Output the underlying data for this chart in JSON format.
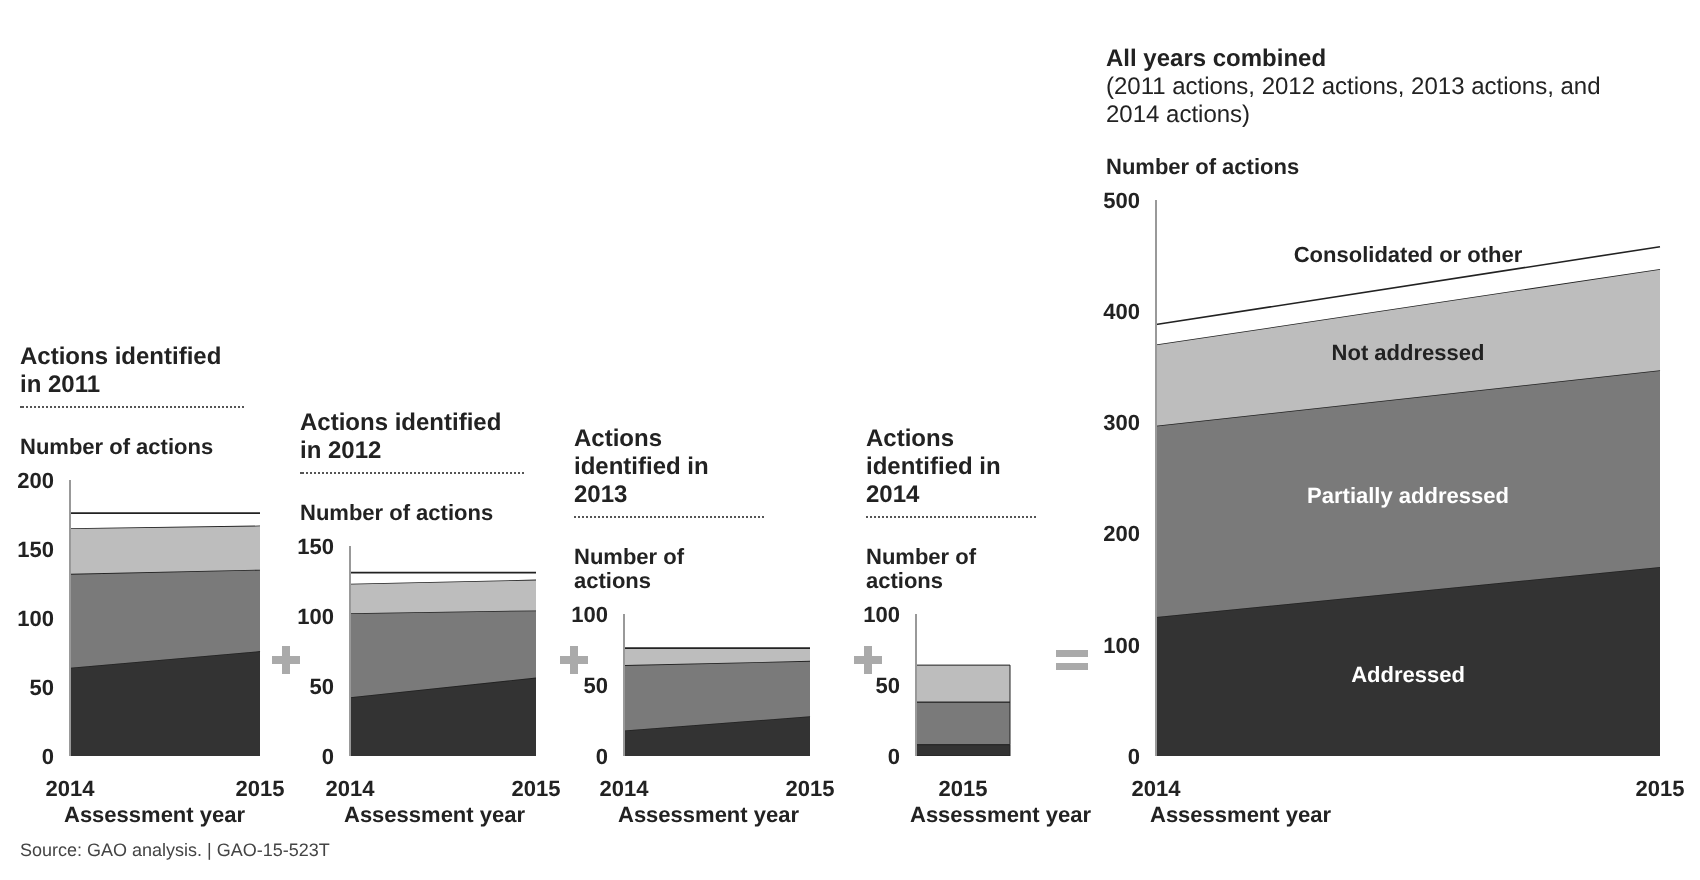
{
  "chart_data": [
    {
      "type": "area",
      "stacked": true,
      "title": "Actions identified in 2011",
      "ylabel": "Number of actions",
      "xlabel": "Assessment year",
      "categories": [
        "2014",
        "2015"
      ],
      "ylim": [
        0,
        200
      ],
      "yticks": [
        0,
        50,
        100,
        150,
        200
      ],
      "series": [
        {
          "color": "#333333",
          "values": [
            64,
            76
          ]
        },
        {
          "color": "#7a7a7a",
          "values": [
            68,
            59
          ]
        },
        {
          "color": "#bdbdbd",
          "values": [
            33,
            32
          ]
        },
        {
          "color": "#ffffff",
          "values": [
            11,
            9
          ]
        }
      ]
    },
    {
      "type": "area",
      "stacked": true,
      "title": "Actions identified in 2012",
      "ylabel": "Number of actions",
      "xlabel": "Assessment year",
      "categories": [
        "2014",
        "2015"
      ],
      "ylim": [
        0,
        150
      ],
      "yticks": [
        0,
        50,
        100,
        150
      ],
      "series": [
        {
          "color": "#333333",
          "values": [
            42,
            56
          ]
        },
        {
          "color": "#7a7a7a",
          "values": [
            60,
            48
          ]
        },
        {
          "color": "#bdbdbd",
          "values": [
            21,
            22
          ]
        },
        {
          "color": "#ffffff",
          "values": [
            8,
            5
          ]
        }
      ]
    },
    {
      "type": "area",
      "stacked": true,
      "title": "Actions identified in 2013",
      "ylabel": "Number of actions",
      "xlabel": "Assessment year",
      "categories": [
        "2014",
        "2015"
      ],
      "ylim": [
        0,
        100
      ],
      "yticks": [
        0,
        50,
        100
      ],
      "series": [
        {
          "color": "#333333",
          "values": [
            18,
            28
          ]
        },
        {
          "color": "#7a7a7a",
          "values": [
            46,
            39
          ]
        },
        {
          "color": "#bdbdbd",
          "values": [
            12,
            9
          ]
        }
      ]
    },
    {
      "type": "bar",
      "stacked": true,
      "title": "Actions identified in 2014",
      "ylabel": "Number of actions",
      "xlabel": "Assessment year",
      "categories": [
        "2015"
      ],
      "ylim": [
        0,
        100
      ],
      "yticks": [
        0,
        50,
        100
      ],
      "series": [
        {
          "color": "#333333",
          "values": [
            8
          ]
        },
        {
          "color": "#7a7a7a",
          "values": [
            30
          ]
        },
        {
          "color": "#bdbdbd",
          "values": [
            26
          ]
        }
      ]
    },
    {
      "type": "area",
      "stacked": true,
      "title": "All years combined",
      "subtitle": "(2011 actions, 2012 actions, 2013 actions, and 2014 actions)",
      "ylabel": "Number of actions",
      "xlabel": "Assessment year",
      "categories": [
        "2014",
        "2015"
      ],
      "ylim": [
        0,
        500
      ],
      "yticks": [
        0,
        100,
        200,
        300,
        400,
        500
      ],
      "annotations": [
        "Source: GAO analysis. | GAO-15-523T"
      ],
      "series": [
        {
          "name": "Addressed",
          "color": "#333333",
          "values": [
            125,
            170
          ]
        },
        {
          "name": "Partially addressed",
          "color": "#7a7a7a",
          "values": [
            172,
            177
          ]
        },
        {
          "name": "Not addressed",
          "color": "#bdbdbd",
          "values": [
            73,
            91
          ]
        },
        {
          "name": "Consolidated or other",
          "color": "#ffffff",
          "values": [
            18,
            20
          ]
        }
      ]
    }
  ]
}
